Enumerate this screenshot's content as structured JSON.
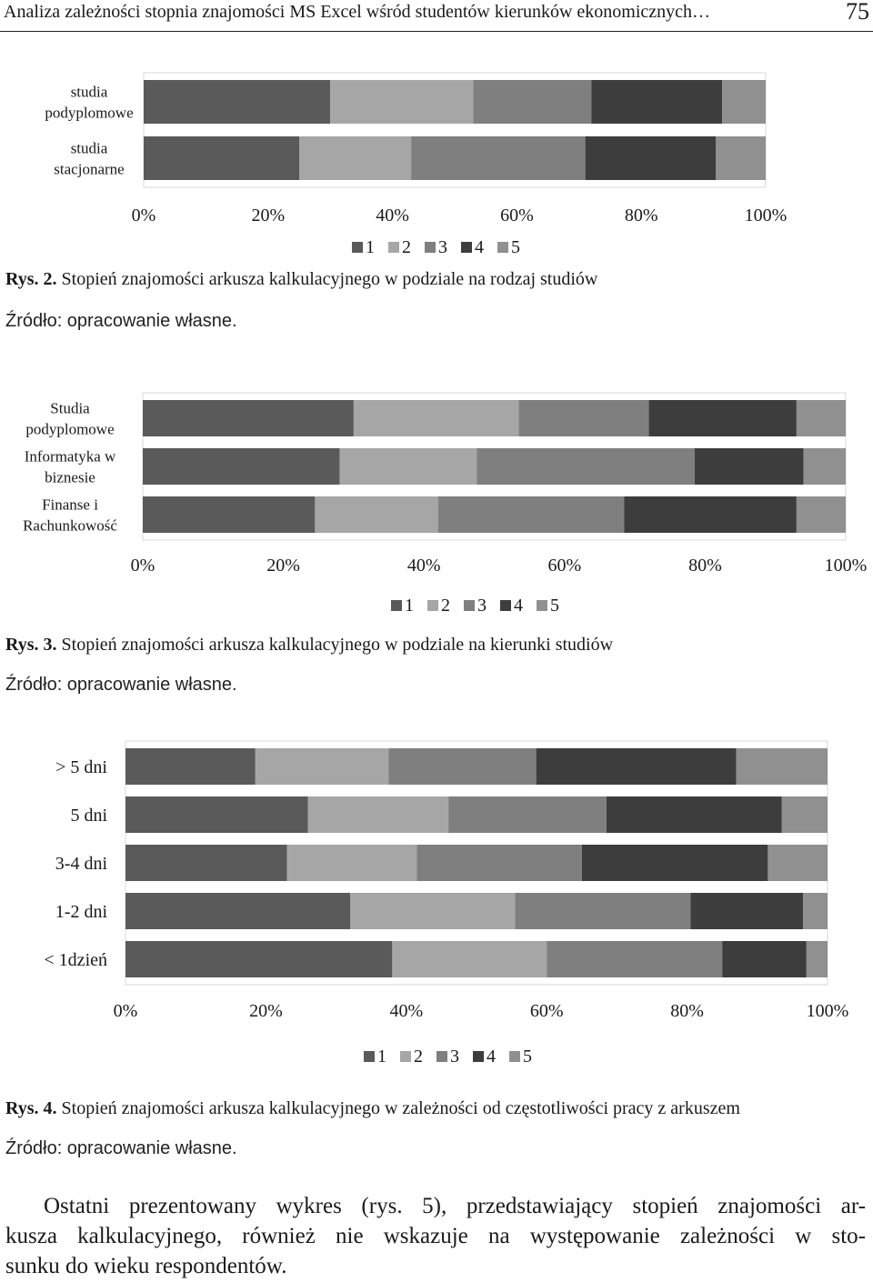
{
  "header": {
    "running_title": "Analiza zależności stopnia znajomości MS Excel wśród studentów kierunków ekonomicznych…",
    "page_number": "75"
  },
  "palette": [
    "#5a5a5a",
    "#a6a6a6",
    "#7f7f7f",
    "#3d3d3d",
    "#909090"
  ],
  "chart_data": [
    {
      "type": "bar",
      "orientation": "horizontal",
      "stacked": "100%",
      "categories": [
        "studia podyplomowe",
        "studia stacjonarne"
      ],
      "series": [
        {
          "name": "1",
          "values": [
            30,
            25
          ]
        },
        {
          "name": "2",
          "values": [
            23,
            18
          ]
        },
        {
          "name": "3",
          "values": [
            19,
            28
          ]
        },
        {
          "name": "4",
          "values": [
            21,
            21
          ]
        },
        {
          "name": "5",
          "values": [
            7,
            8
          ]
        }
      ],
      "xticks": [
        "0%",
        "20%",
        "40%",
        "60%",
        "80%",
        "100%"
      ],
      "xlim": [
        0,
        100
      ],
      "legend": "bottom",
      "grid": false
    },
    {
      "type": "bar",
      "orientation": "horizontal",
      "stacked": "100%",
      "categories": [
        "Studia podyplomowe",
        "Informatyka w biznesie",
        "Finanse i Rachunkowość"
      ],
      "series": [
        {
          "name": "1",
          "values": [
            30,
            28,
            24.5
          ]
        },
        {
          "name": "2",
          "values": [
            23.5,
            19.5,
            17.5
          ]
        },
        {
          "name": "3",
          "values": [
            18.5,
            31,
            26.5
          ]
        },
        {
          "name": "4",
          "values": [
            21,
            15.5,
            24.5
          ]
        },
        {
          "name": "5",
          "values": [
            7,
            6,
            7
          ]
        }
      ],
      "xticks": [
        "0%",
        "20%",
        "40%",
        "60%",
        "80%",
        "100%"
      ],
      "xlim": [
        0,
        100
      ],
      "legend": "bottom",
      "grid": false
    },
    {
      "type": "bar",
      "orientation": "horizontal",
      "stacked": "100%",
      "categories": [
        "> 5 dni",
        "5 dni",
        "3-4 dni",
        "1-2 dni",
        "< 1dzień"
      ],
      "series": [
        {
          "name": "1",
          "values": [
            18.5,
            26,
            23,
            32,
            38
          ]
        },
        {
          "name": "2",
          "values": [
            19,
            20,
            18.5,
            23.5,
            22
          ]
        },
        {
          "name": "3",
          "values": [
            21,
            22.5,
            23.5,
            25,
            25
          ]
        },
        {
          "name": "4",
          "values": [
            28.5,
            25,
            26.5,
            16,
            12
          ]
        },
        {
          "name": "5",
          "values": [
            13,
            6.5,
            8.5,
            3.5,
            3
          ]
        }
      ],
      "xticks": [
        "0%",
        "20%",
        "40%",
        "60%",
        "80%",
        "100%"
      ],
      "xlim": [
        0,
        100
      ],
      "legend": "bottom",
      "grid": false
    }
  ],
  "captions": [
    {
      "label": "Rys. 2.",
      "text": " Stopień znajomości arkusza kalkulacyjnego w podziale na rodzaj studiów",
      "source": "Źródło: opracowanie własne."
    },
    {
      "label": "Rys. 3.",
      "text": " Stopień znajomości arkusza kalkulacyjnego w podziale na kierunki studiów",
      "source": "Źródło: opracowanie własne."
    },
    {
      "label": "Rys. 4.",
      "text": " Stopień znajomości arkusza kalkulacyjnego w zależności od częstotliwości pracy z arkuszem",
      "source": "Źródło: opracowanie własne."
    }
  ],
  "paragraph": {
    "line1": "Ostatni prezentowany wykres (rys. 5), przedstawiający stopień znajomości ar-",
    "line2": "kusza kalkulacyjnego, również nie wskazuje na występowanie zależności w sto-",
    "line3": "sunku do wieku respondentów."
  }
}
